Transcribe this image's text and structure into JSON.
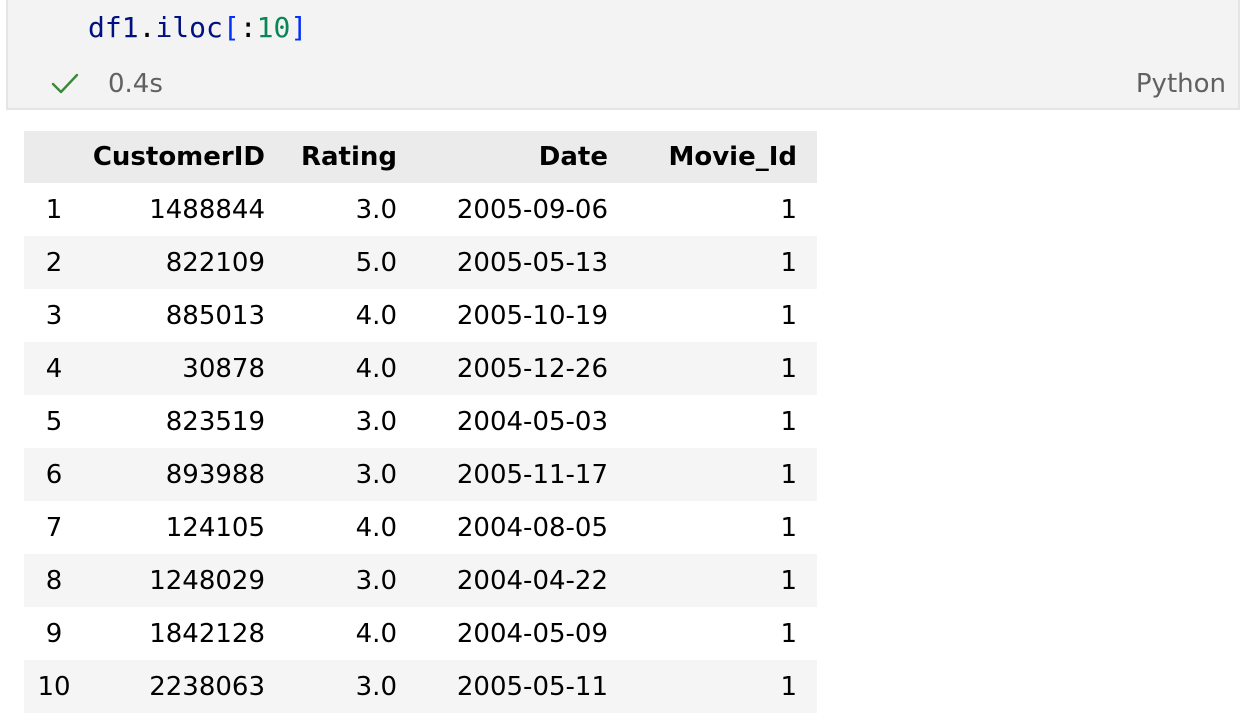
{
  "cell": {
    "code": {
      "var": "df1",
      "dot": ".",
      "attr": "iloc",
      "open": "[",
      "colon": ":",
      "num": "10",
      "close": "]"
    },
    "exec_time": "0.4s",
    "language": "Python",
    "status_icon": "check-icon",
    "status_color": "#388a34"
  },
  "table": {
    "columns": [
      "",
      "CustomerID",
      "Rating",
      "Date",
      "Movie_Id"
    ],
    "rows": [
      [
        "1",
        "1488844",
        "3.0",
        "2005-09-06",
        "1"
      ],
      [
        "2",
        "822109",
        "5.0",
        "2005-05-13",
        "1"
      ],
      [
        "3",
        "885013",
        "4.0",
        "2005-10-19",
        "1"
      ],
      [
        "4",
        "30878",
        "4.0",
        "2005-12-26",
        "1"
      ],
      [
        "5",
        "823519",
        "3.0",
        "2004-05-03",
        "1"
      ],
      [
        "6",
        "893988",
        "3.0",
        "2005-11-17",
        "1"
      ],
      [
        "7",
        "124105",
        "4.0",
        "2004-08-05",
        "1"
      ],
      [
        "8",
        "1248029",
        "3.0",
        "2004-04-22",
        "1"
      ],
      [
        "9",
        "1842128",
        "4.0",
        "2004-05-09",
        "1"
      ],
      [
        "10",
        "2238063",
        "3.0",
        "2005-05-11",
        "1"
      ]
    ]
  }
}
